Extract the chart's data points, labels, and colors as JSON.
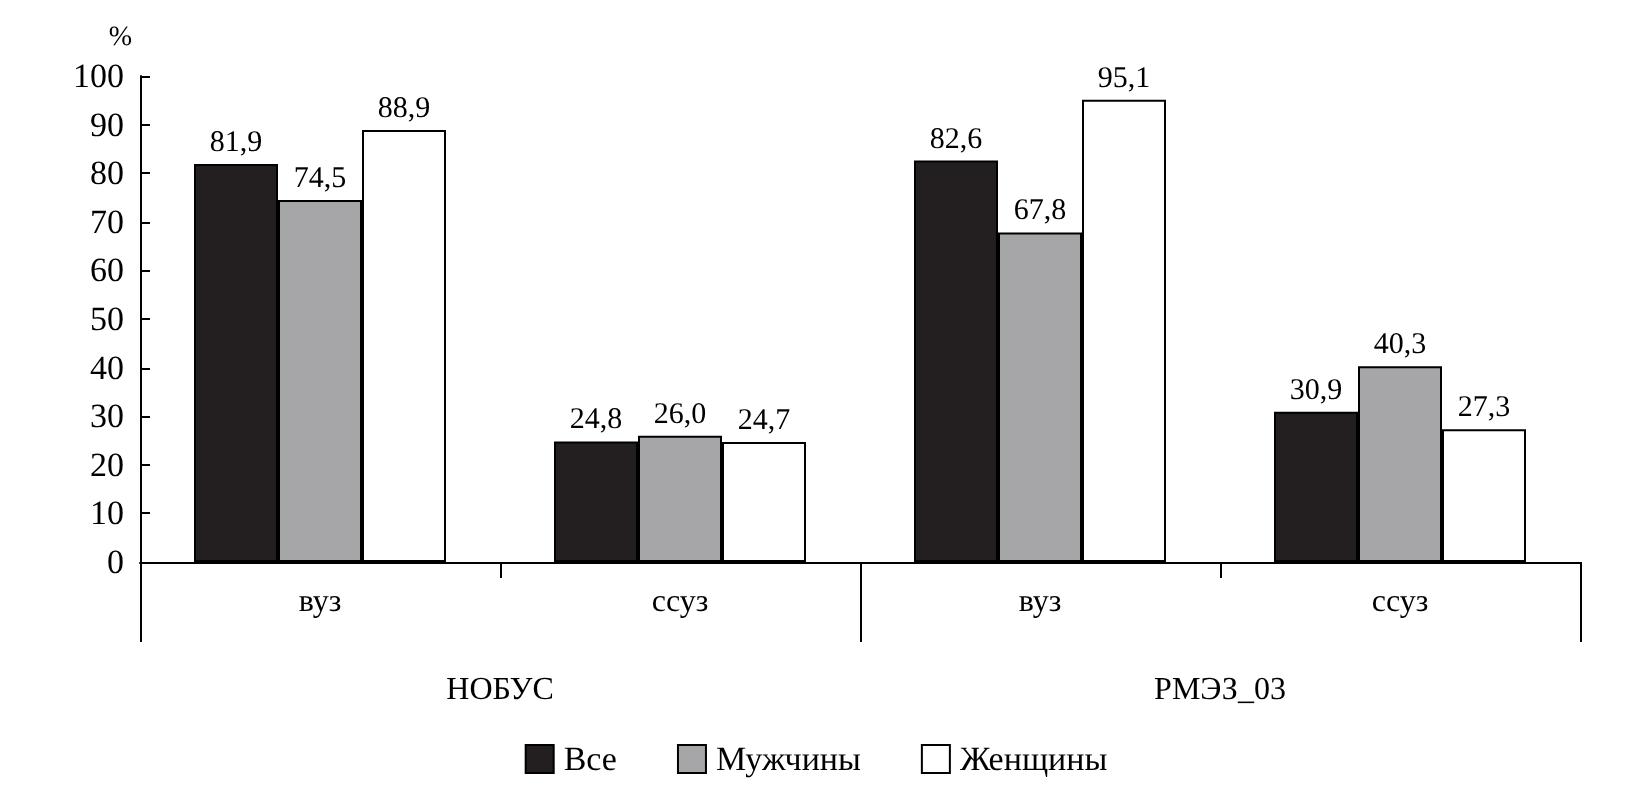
{
  "chart_data": {
    "type": "bar",
    "ylabel": "%",
    "categories": [
      "вуз",
      "ссуз",
      "вуз",
      "ссуз"
    ],
    "annotations": [
      "НОБУС",
      "РМЭЗ_03"
    ],
    "series": [
      {
        "name": "Все",
        "color": "#231f20",
        "values": [
          81.9,
          24.8,
          82.6,
          30.9
        ],
        "value_labels": [
          "81,9",
          "24,8",
          "82,6",
          "30,9"
        ]
      },
      {
        "name": "Мужчины",
        "color": "#a6a6a8",
        "values": [
          74.5,
          26.0,
          67.8,
          40.3
        ],
        "value_labels": [
          "74,5",
          "26,0",
          "67,8",
          "40,3"
        ]
      },
      {
        "name": "Женщины",
        "color": "#ffffff",
        "values": [
          88.9,
          24.7,
          95.1,
          27.3
        ],
        "value_labels": [
          "88,9",
          "24,7",
          "95,1",
          "27,3"
        ]
      }
    ],
    "ylim": [
      0,
      100
    ],
    "yticks": [
      0,
      10,
      20,
      30,
      40,
      50,
      60,
      70,
      80,
      90,
      100
    ],
    "grid": false,
    "legend": "bottom"
  }
}
